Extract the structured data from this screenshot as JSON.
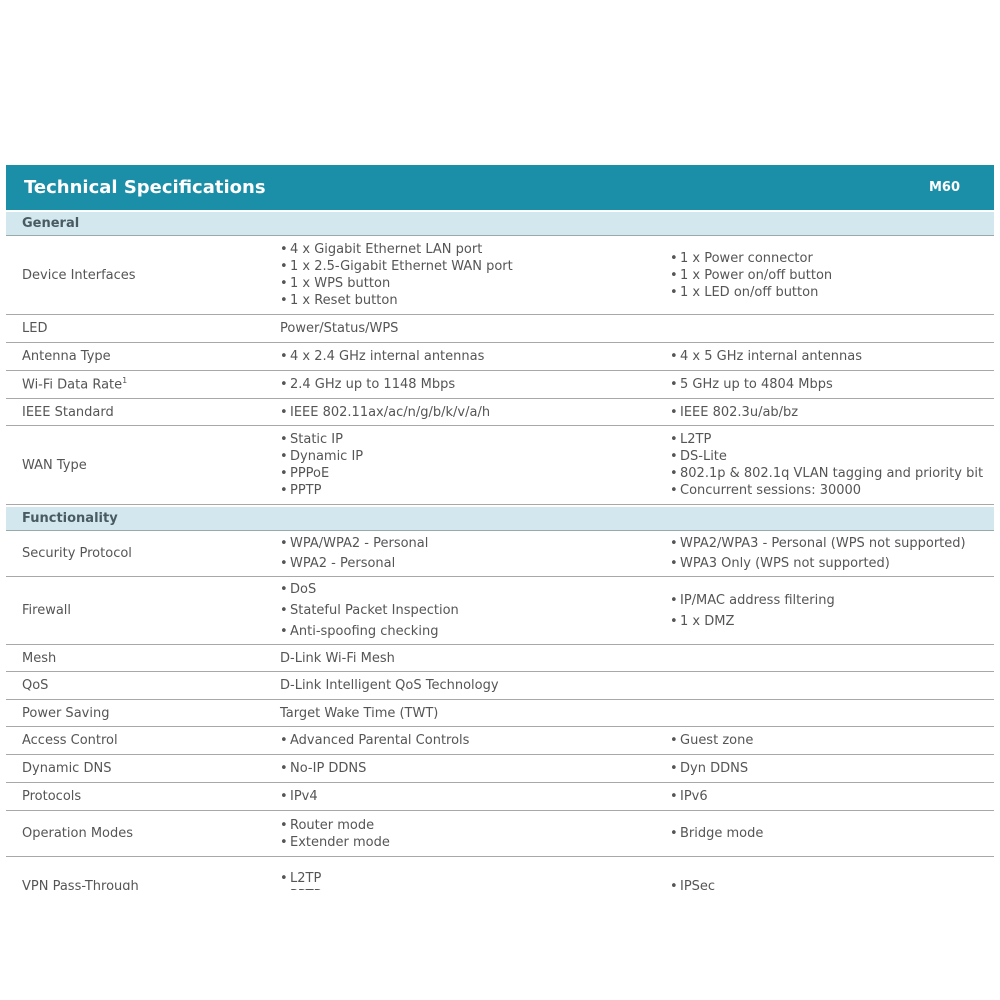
{
  "header": {
    "title": "Technical Specifications",
    "model": "M60"
  },
  "sections": [
    {
      "title": "General",
      "rows": [
        {
          "label": "Device Interfaces",
          "col1": [
            "4 x Gigabit Ethernet LAN port",
            "1 x 2.5-Gigabit Ethernet WAN port",
            "1 x WPS button",
            "1 x Reset button"
          ],
          "col2": [
            "1 x Power connector",
            "1 x Power on/off button",
            "1 x LED on/off button"
          ]
        },
        {
          "label": "LED",
          "col1": "Power/Status/WPS"
        },
        {
          "label": "Antenna Type",
          "col1": [
            "4 x 2.4 GHz internal antennas"
          ],
          "col2": [
            "4 x 5 GHz internal antennas"
          ]
        },
        {
          "label": "Wi-Fi Data Rate",
          "note": "1",
          "col1": [
            "2.4 GHz up to 1148 Mbps"
          ],
          "col2": [
            "5 GHz up to 4804 Mbps"
          ]
        },
        {
          "label": "IEEE Standard",
          "col1": [
            "IEEE 802.11ax/ac/n/g/b/k/v/a/h"
          ],
          "col2": [
            "IEEE 802.3u/ab/bz"
          ]
        },
        {
          "label": "WAN Type",
          "col1": [
            "Static IP",
            "Dynamic IP",
            "PPPoE",
            "PPTP"
          ],
          "col2": [
            "L2TP",
            "DS-Lite",
            "802.1p & 802.1q VLAN tagging and priority bit",
            "Concurrent sessions: 30000"
          ]
        }
      ]
    },
    {
      "title": "Functionality",
      "rows": [
        {
          "label": "Security Protocol",
          "col1": [
            "WPA/WPA2 - Personal",
            "WPA2 - Personal"
          ],
          "col2": [
            "WPA2/WPA3 - Personal (WPS not supported)",
            "WPA3 Only (WPS not supported)"
          ]
        },
        {
          "label": "Firewall",
          "col1": [
            "DoS",
            "Stateful Packet Inspection",
            "Anti-spoofing checking"
          ],
          "col2": [
            "IP/MAC address filtering",
            "1 x DMZ"
          ]
        },
        {
          "label": "Mesh",
          "col1": "D-Link Wi-Fi Mesh"
        },
        {
          "label": "QoS",
          "col1": "D-Link Intelligent QoS Technology"
        },
        {
          "label": "Power Saving",
          "col1": "Target Wake Time (TWT)"
        },
        {
          "label": "Access Control",
          "col1": [
            "Advanced Parental Controls"
          ],
          "col2": [
            "Guest zone"
          ]
        },
        {
          "label": "Dynamic DNS",
          "col1": [
            "No-IP DDNS"
          ],
          "col2": [
            "Dyn DDNS"
          ]
        },
        {
          "label": "Protocols",
          "col1": [
            "IPv4"
          ],
          "col2": [
            "IPv6"
          ]
        },
        {
          "label": "Operation Modes",
          "col1": [
            "Router mode",
            "Extender mode"
          ],
          "col2": [
            "Bridge mode"
          ]
        },
        {
          "label": "VPN Pass-Through",
          "col1": [
            "L2TP",
            "PPTP"
          ],
          "col2": [
            "IPSec"
          ]
        }
      ]
    }
  ]
}
